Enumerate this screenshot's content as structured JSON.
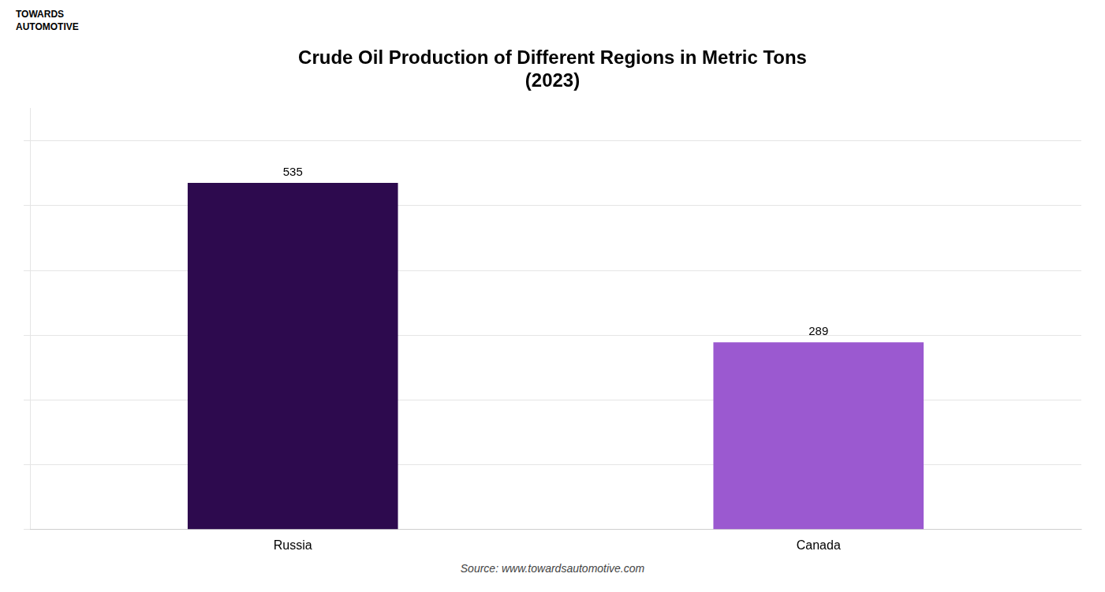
{
  "chart_data": {
    "type": "bar",
    "title": "Crude Oil Production of Different Regions in Metric Tons\n(2023)",
    "categories": [
      "Russia",
      "Canada"
    ],
    "values": [
      535,
      289
    ],
    "colors": [
      "#2d0a4e",
      "#9b59d0"
    ],
    "ylim": [
      0,
      650
    ],
    "yticks": [
      0,
      100,
      200,
      300,
      400,
      500,
      600
    ],
    "grid": true,
    "data_labels": true,
    "tick_labels": "x",
    "annotations": [
      "TOWARDS",
      "AUTOMOTIVE",
      "Source: www.towardsautomotive.com"
    ]
  }
}
